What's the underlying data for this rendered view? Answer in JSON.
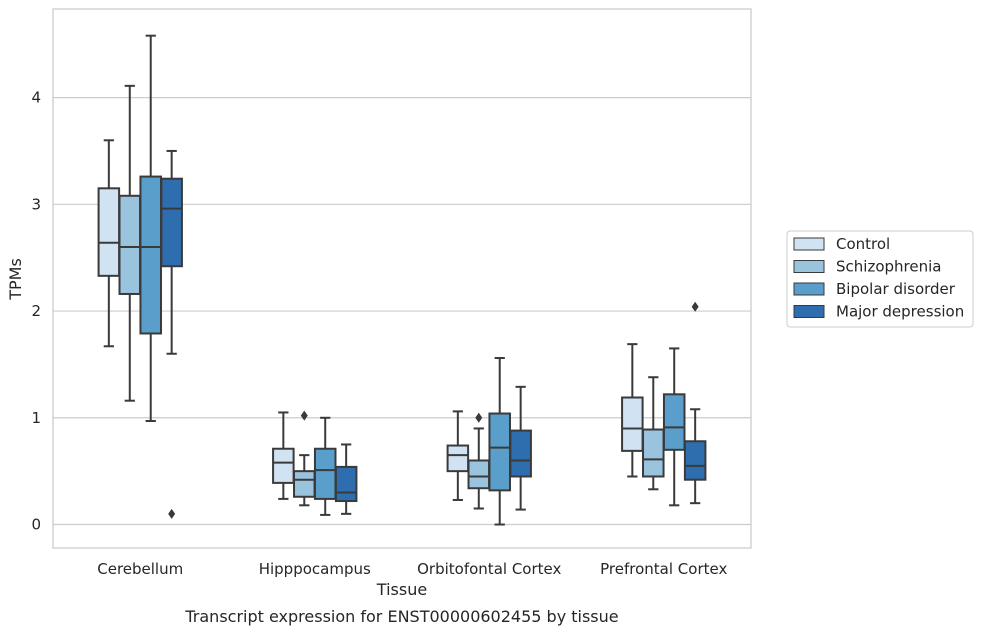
{
  "chart_data": {
    "type": "box",
    "title": "",
    "caption": "Transcript expression for ENST00000602455 by tissue",
    "xlabel": "Tissue",
    "ylabel": "TPMs",
    "ylim": [
      -0.22,
      4.83
    ],
    "yticks": [
      0,
      1,
      2,
      3,
      4
    ],
    "grid": "horizontal",
    "legend_position": "right",
    "categories": [
      "Cerebellum",
      "Hipppocampus",
      "Orbitofontal Cortex",
      "Prefrontal Cortex"
    ],
    "series": [
      {
        "name": "Control",
        "color": "#d1e2f2",
        "boxes": [
          {
            "whislo": 1.67,
            "q1": 2.33,
            "median": 2.64,
            "q3": 3.15,
            "whishi": 3.6,
            "fliers": []
          },
          {
            "whislo": 0.24,
            "q1": 0.39,
            "median": 0.58,
            "q3": 0.71,
            "whishi": 1.05,
            "fliers": []
          },
          {
            "whislo": 0.23,
            "q1": 0.5,
            "median": 0.65,
            "q3": 0.74,
            "whishi": 1.06,
            "fliers": []
          },
          {
            "whislo": 0.45,
            "q1": 0.69,
            "median": 0.9,
            "q3": 1.19,
            "whishi": 1.69,
            "fliers": []
          }
        ]
      },
      {
        "name": "Schizophrenia",
        "color": "#9ac3de",
        "boxes": [
          {
            "whislo": 1.16,
            "q1": 2.16,
            "median": 2.6,
            "q3": 3.08,
            "whishi": 4.11,
            "fliers": []
          },
          {
            "whislo": 0.18,
            "q1": 0.26,
            "median": 0.42,
            "q3": 0.5,
            "whishi": 0.65,
            "fliers": [
              1.02
            ]
          },
          {
            "whislo": 0.15,
            "q1": 0.34,
            "median": 0.45,
            "q3": 0.6,
            "whishi": 0.9,
            "fliers": [
              1.0
            ]
          },
          {
            "whislo": 0.33,
            "q1": 0.45,
            "median": 0.61,
            "q3": 0.89,
            "whishi": 1.38,
            "fliers": []
          }
        ]
      },
      {
        "name": "Bipolar disorder",
        "color": "#5a9fcc",
        "boxes": [
          {
            "whislo": 0.97,
            "q1": 1.79,
            "median": 2.6,
            "q3": 3.26,
            "whishi": 4.58,
            "fliers": []
          },
          {
            "whislo": 0.09,
            "q1": 0.24,
            "median": 0.51,
            "q3": 0.71,
            "whishi": 1.0,
            "fliers": []
          },
          {
            "whislo": 0.0,
            "q1": 0.32,
            "median": 0.72,
            "q3": 1.04,
            "whishi": 1.56,
            "fliers": []
          },
          {
            "whislo": 0.18,
            "q1": 0.7,
            "median": 0.91,
            "q3": 1.22,
            "whishi": 1.65,
            "fliers": []
          }
        ]
      },
      {
        "name": "Major depression",
        "color": "#2f6eae",
        "boxes": [
          {
            "whislo": 1.6,
            "q1": 2.42,
            "median": 2.96,
            "q3": 3.24,
            "whishi": 3.5,
            "fliers": [
              0.1
            ]
          },
          {
            "whislo": 0.1,
            "q1": 0.22,
            "median": 0.3,
            "q3": 0.54,
            "whishi": 0.75,
            "fliers": []
          },
          {
            "whislo": 0.14,
            "q1": 0.45,
            "median": 0.6,
            "q3": 0.88,
            "whishi": 1.29,
            "fliers": []
          },
          {
            "whislo": 0.2,
            "q1": 0.42,
            "median": 0.55,
            "q3": 0.78,
            "whishi": 1.08,
            "fliers": [
              2.04
            ]
          }
        ]
      }
    ]
  }
}
